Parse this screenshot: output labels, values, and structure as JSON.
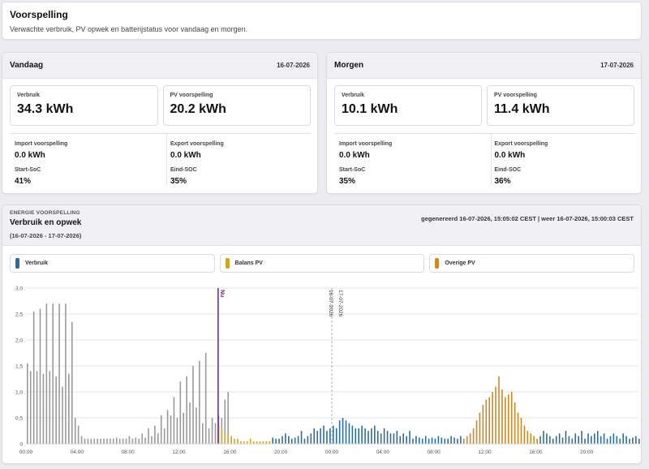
{
  "header": {
    "title": "Voorspelling",
    "subtitle": "Verwachte verbruik, PV opwek en batterijstatus voor vandaag en morgen."
  },
  "days": [
    {
      "title": "Vandaag",
      "date": "16-07-2026",
      "verbruik_label": "Verbruik",
      "verbruik_value": "34.3 kWh",
      "pv_label": "PV voorspelling",
      "pv_value": "20.2 kWh",
      "import_label": "Import voorspelling",
      "import_value": "0.0 kWh",
      "export_label": "Export voorspelling",
      "export_value": "0.0 kWh",
      "start_soc_label": "Start-SoC",
      "start_soc_value": "41%",
      "end_soc_label": "Eind-SOC",
      "end_soc_value": "35%"
    },
    {
      "title": "Morgen",
      "date": "17-07-2026",
      "verbruik_label": "Verbruik",
      "verbruik_value": "10.1 kWh",
      "pv_label": "PV voorspelling",
      "pv_value": "11.4 kWh",
      "import_label": "Import voorspelling",
      "import_value": "0.0 kWh",
      "export_label": "Export voorspelling",
      "export_value": "0.0 kWh",
      "start_soc_label": "Start-SoC",
      "start_soc_value": "35%",
      "end_soc_label": "Eind-SOC",
      "end_soc_value": "36%"
    }
  ],
  "chart_card": {
    "kicker": "ENERGIE VOORSPELLING",
    "title": "Verbruik en opwek",
    "range": "(16-07-2026 - 17-07-2026)",
    "generated": "gegenereerd 16-07-2026, 15:05:02 CEST | weer 16-07-2026, 15:00:03 CEST"
  },
  "legend": [
    {
      "label": "Verbruik",
      "color": "#2e6e96"
    },
    {
      "label": "Balans PV",
      "color": "#d0a520"
    },
    {
      "label": "Overige PV",
      "color": "#c88a24"
    }
  ],
  "colors": {
    "history": "#9a9a9a",
    "verbruik": "#2e6e96",
    "balans_pv": "#d0a520",
    "overige_pv": "#c88a24",
    "now_line": "#6b2378",
    "midnight_line": "#b0b0b0"
  },
  "chart_data": {
    "type": "bar",
    "title": "Verbruik en opwek",
    "ylim": [
      0,
      3.0
    ],
    "y_ticks": [
      "0",
      "0,5",
      "1,0",
      "1,5",
      "2,0",
      "2,5",
      "3,0"
    ],
    "x_range_hours": [
      0,
      48
    ],
    "x_ticks": [
      "00:00",
      "04:00",
      "08:00",
      "12:00",
      "16:00",
      "20:00",
      "00:00",
      "04:00",
      "08:00",
      "12:00",
      "16:00",
      "20:00"
    ],
    "grid": true,
    "now_label": "Nu",
    "now_hour": 15.08,
    "midnight_hour": 24,
    "midnight_labels": [
      "16-07-2026",
      "17-07-2026"
    ],
    "bar_slot_hours": 0.25,
    "series": [
      {
        "name": "Verbruik",
        "color_key": "history",
        "start_hour": 0,
        "values": [
          1.55,
          1.4,
          2.55,
          1.4,
          2.6,
          1.35,
          2.7,
          1.4,
          2.7,
          1.3,
          2.7,
          1.1,
          2.7,
          1.35,
          2.35,
          0.5,
          0.35,
          0.15,
          0.1,
          0.1,
          0.1,
          0.1,
          0.1,
          0.1,
          0.1,
          0.1,
          0.1,
          0.1,
          0.12,
          0.1,
          0.1,
          0.1,
          0.15,
          0.1,
          0.12,
          0.1,
          0.2,
          0.12,
          0.3,
          0.15,
          0.35,
          0.2,
          0.55,
          0.3,
          0.65,
          0.55,
          0.9,
          0.5,
          1.2,
          0.6,
          1.3,
          0.8,
          1.5,
          0.7,
          1.6,
          0.4,
          1.75,
          0.3,
          0.5,
          0.4,
          0.55,
          0.5,
          0.85,
          1.0
        ]
      },
      {
        "name": "Balans PV",
        "color_key": "balans_pv",
        "start_hour": 15.0,
        "values": [
          0.35,
          0.3,
          0.25,
          0.2,
          0.15,
          0.1,
          0.1,
          0.05,
          0.05,
          0.05,
          0.1,
          0.05,
          0.05,
          0.05,
          0.05,
          0.05,
          0.05
        ]
      },
      {
        "name": "Verbruik",
        "color_key": "verbruik",
        "start_hour": 19.25,
        "values": [
          0.12,
          0.1,
          0.1,
          0.15,
          0.2,
          0.15,
          0.1,
          0.12,
          0.15,
          0.25,
          0.1,
          0.15,
          0.2,
          0.3,
          0.25,
          0.3,
          0.35,
          0.25,
          0.3,
          0.35,
          0.3,
          0.45,
          0.5,
          0.45,
          0.4,
          0.35,
          0.3,
          0.3,
          0.35,
          0.3,
          0.25,
          0.3,
          0.35,
          0.25,
          0.2,
          0.3,
          0.25,
          0.2,
          0.2,
          0.25,
          0.15,
          0.2,
          0.15,
          0.25,
          0.1,
          0.15,
          0.12,
          0.1,
          0.15,
          0.1,
          0.12,
          0.1,
          0.15,
          0.12,
          0.1,
          0.1,
          0.15,
          0.12,
          0.1,
          0.15
        ]
      },
      {
        "name": "Overige PV",
        "color_key": "overige_pv",
        "start_hour": 34.25,
        "values": [
          0.1,
          0.15,
          0.2,
          0.3,
          0.45,
          0.6,
          0.75,
          0.85,
          0.9,
          1.0,
          1.1,
          1.3,
          1.05,
          0.9,
          0.95,
          1.0,
          0.8,
          0.6,
          0.5,
          0.35,
          0.25,
          0.2,
          0.15,
          0.1
        ]
      },
      {
        "name": "Verbruik",
        "color_key": "verbruik",
        "start_hour": 40.25,
        "values": [
          0.15,
          0.25,
          0.2,
          0.15,
          0.1,
          0.15,
          0.2,
          0.12,
          0.25,
          0.15,
          0.1,
          0.2,
          0.15,
          0.25,
          0.1,
          0.2,
          0.15,
          0.2,
          0.25,
          0.15,
          0.2,
          0.1,
          0.15,
          0.2,
          0.15,
          0.1,
          0.2,
          0.15,
          0.1,
          0.12,
          0.15,
          0.1
        ]
      }
    ]
  }
}
